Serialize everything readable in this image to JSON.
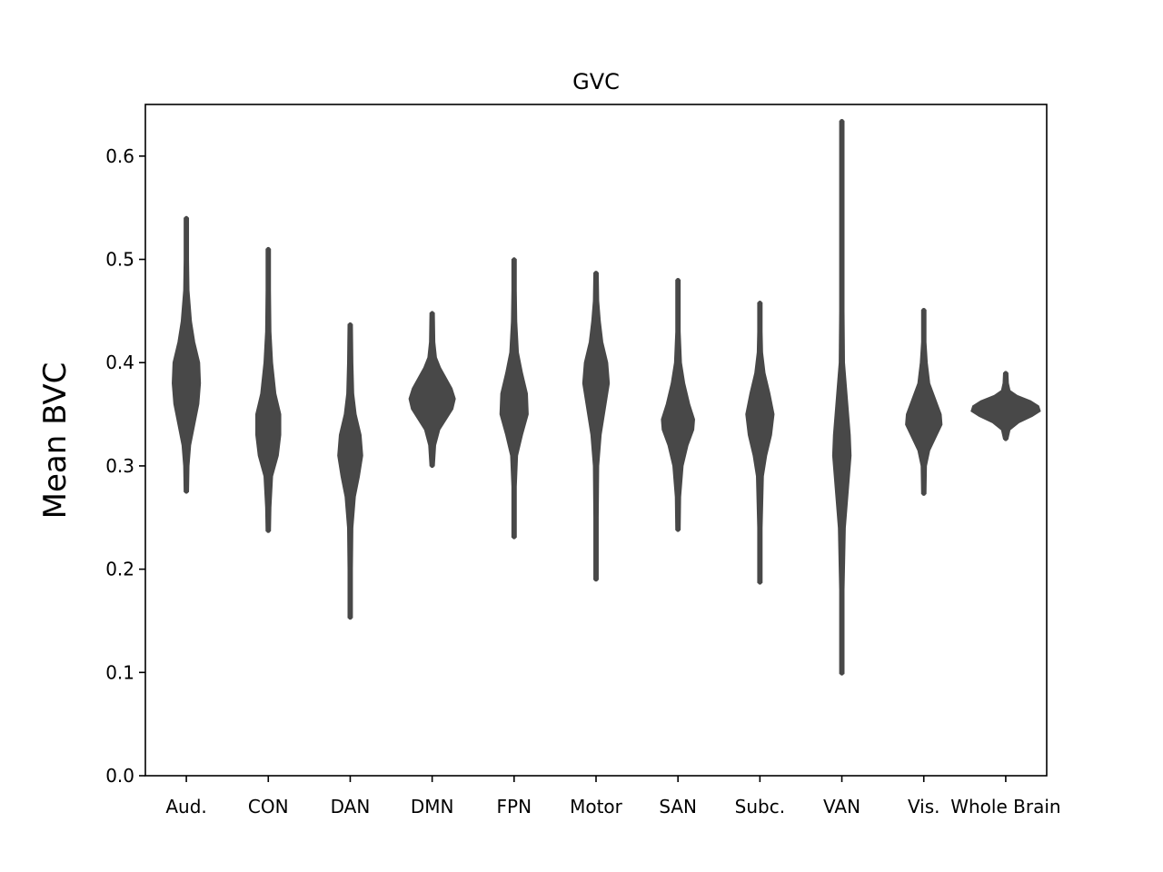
{
  "chart_data": {
    "type": "violin",
    "title": "GVC",
    "xlabel": "",
    "ylabel": "Mean BVC",
    "ylim": [
      0.0,
      0.65
    ],
    "yticks": [
      0.0,
      0.1,
      0.2,
      0.3,
      0.4,
      0.5,
      0.6
    ],
    "ytick_labels": [
      "0.0",
      "0.1",
      "0.2",
      "0.3",
      "0.4",
      "0.5",
      "0.6"
    ],
    "grid": false,
    "violin_color": "#484848",
    "categories": [
      "Aud.",
      "CON",
      "DAN",
      "DMN",
      "FPN",
      "Motor",
      "SAN",
      "Subc.",
      "VAN",
      "Vis.",
      "Whole Brain"
    ],
    "violins": [
      {
        "category": "Aud.",
        "min": 0.275,
        "max": 0.54,
        "median": 0.385,
        "width": 0.17,
        "profile": [
          [
            0.275,
            0.02
          ],
          [
            0.3,
            0.03
          ],
          [
            0.32,
            0.05
          ],
          [
            0.34,
            0.1
          ],
          [
            0.36,
            0.15
          ],
          [
            0.38,
            0.17
          ],
          [
            0.4,
            0.16
          ],
          [
            0.42,
            0.1
          ],
          [
            0.44,
            0.06
          ],
          [
            0.47,
            0.03
          ],
          [
            0.5,
            0.02
          ],
          [
            0.54,
            0.02
          ]
        ]
      },
      {
        "category": "CON",
        "min": 0.237,
        "max": 0.51,
        "median": 0.34,
        "width": 0.15,
        "profile": [
          [
            0.237,
            0.02
          ],
          [
            0.26,
            0.03
          ],
          [
            0.29,
            0.05
          ],
          [
            0.31,
            0.12
          ],
          [
            0.33,
            0.15
          ],
          [
            0.35,
            0.15
          ],
          [
            0.37,
            0.09
          ],
          [
            0.4,
            0.05
          ],
          [
            0.43,
            0.03
          ],
          [
            0.47,
            0.02
          ],
          [
            0.51,
            0.02
          ]
        ]
      },
      {
        "category": "DAN",
        "min": 0.153,
        "max": 0.437,
        "median": 0.31,
        "width": 0.15,
        "profile": [
          [
            0.153,
            0.02
          ],
          [
            0.2,
            0.02
          ],
          [
            0.24,
            0.03
          ],
          [
            0.27,
            0.06
          ],
          [
            0.29,
            0.11
          ],
          [
            0.31,
            0.15
          ],
          [
            0.33,
            0.13
          ],
          [
            0.35,
            0.07
          ],
          [
            0.37,
            0.04
          ],
          [
            0.4,
            0.03
          ],
          [
            0.437,
            0.02
          ]
        ]
      },
      {
        "category": "DMN",
        "min": 0.3,
        "max": 0.448,
        "median": 0.362,
        "width": 0.28,
        "profile": [
          [
            0.3,
            0.02
          ],
          [
            0.32,
            0.04
          ],
          [
            0.335,
            0.09
          ],
          [
            0.345,
            0.17
          ],
          [
            0.355,
            0.25
          ],
          [
            0.365,
            0.28
          ],
          [
            0.375,
            0.24
          ],
          [
            0.385,
            0.17
          ],
          [
            0.395,
            0.1
          ],
          [
            0.405,
            0.05
          ],
          [
            0.42,
            0.03
          ],
          [
            0.448,
            0.02
          ]
        ]
      },
      {
        "category": "FPN",
        "min": 0.231,
        "max": 0.5,
        "median": 0.355,
        "width": 0.17,
        "profile": [
          [
            0.231,
            0.02
          ],
          [
            0.28,
            0.02
          ],
          [
            0.31,
            0.04
          ],
          [
            0.33,
            0.1
          ],
          [
            0.35,
            0.17
          ],
          [
            0.37,
            0.16
          ],
          [
            0.39,
            0.1
          ],
          [
            0.41,
            0.05
          ],
          [
            0.44,
            0.03
          ],
          [
            0.47,
            0.02
          ],
          [
            0.5,
            0.02
          ]
        ]
      },
      {
        "category": "Motor",
        "min": 0.19,
        "max": 0.487,
        "median": 0.38,
        "width": 0.16,
        "profile": [
          [
            0.19,
            0.02
          ],
          [
            0.25,
            0.02
          ],
          [
            0.3,
            0.03
          ],
          [
            0.33,
            0.06
          ],
          [
            0.36,
            0.12
          ],
          [
            0.38,
            0.16
          ],
          [
            0.4,
            0.14
          ],
          [
            0.42,
            0.08
          ],
          [
            0.44,
            0.05
          ],
          [
            0.46,
            0.03
          ],
          [
            0.487,
            0.02
          ]
        ]
      },
      {
        "category": "SAN",
        "min": 0.238,
        "max": 0.48,
        "median": 0.34,
        "width": 0.2,
        "profile": [
          [
            0.238,
            0.02
          ],
          [
            0.27,
            0.03
          ],
          [
            0.3,
            0.06
          ],
          [
            0.32,
            0.12
          ],
          [
            0.335,
            0.19
          ],
          [
            0.345,
            0.2
          ],
          [
            0.36,
            0.14
          ],
          [
            0.38,
            0.08
          ],
          [
            0.4,
            0.04
          ],
          [
            0.43,
            0.02
          ],
          [
            0.48,
            0.02
          ]
        ]
      },
      {
        "category": "Subc.",
        "min": 0.187,
        "max": 0.458,
        "median": 0.345,
        "width": 0.17,
        "profile": [
          [
            0.187,
            0.02
          ],
          [
            0.24,
            0.02
          ],
          [
            0.29,
            0.04
          ],
          [
            0.31,
            0.08
          ],
          [
            0.33,
            0.14
          ],
          [
            0.35,
            0.17
          ],
          [
            0.37,
            0.12
          ],
          [
            0.39,
            0.06
          ],
          [
            0.41,
            0.03
          ],
          [
            0.43,
            0.02
          ],
          [
            0.458,
            0.02
          ]
        ]
      },
      {
        "category": "VAN",
        "min": 0.099,
        "max": 0.634,
        "median": 0.32,
        "width": 0.11,
        "profile": [
          [
            0.099,
            0.02
          ],
          [
            0.18,
            0.02
          ],
          [
            0.24,
            0.04
          ],
          [
            0.28,
            0.08
          ],
          [
            0.31,
            0.11
          ],
          [
            0.33,
            0.1
          ],
          [
            0.36,
            0.07
          ],
          [
            0.4,
            0.03
          ],
          [
            0.45,
            0.02
          ],
          [
            0.634,
            0.02
          ]
        ]
      },
      {
        "category": "Vis.",
        "min": 0.273,
        "max": 0.451,
        "median": 0.345,
        "width": 0.22,
        "profile": [
          [
            0.273,
            0.02
          ],
          [
            0.3,
            0.03
          ],
          [
            0.315,
            0.07
          ],
          [
            0.33,
            0.16
          ],
          [
            0.34,
            0.22
          ],
          [
            0.35,
            0.21
          ],
          [
            0.365,
            0.14
          ],
          [
            0.38,
            0.07
          ],
          [
            0.4,
            0.04
          ],
          [
            0.42,
            0.02
          ],
          [
            0.451,
            0.02
          ]
        ]
      },
      {
        "category": "Whole Brain",
        "min": 0.326,
        "max": 0.39,
        "median": 0.355,
        "width": 0.42,
        "profile": [
          [
            0.326,
            0.02
          ],
          [
            0.335,
            0.05
          ],
          [
            0.342,
            0.16
          ],
          [
            0.348,
            0.32
          ],
          [
            0.353,
            0.42
          ],
          [
            0.358,
            0.4
          ],
          [
            0.363,
            0.3
          ],
          [
            0.368,
            0.14
          ],
          [
            0.373,
            0.05
          ],
          [
            0.38,
            0.03
          ],
          [
            0.39,
            0.02
          ]
        ]
      }
    ]
  }
}
